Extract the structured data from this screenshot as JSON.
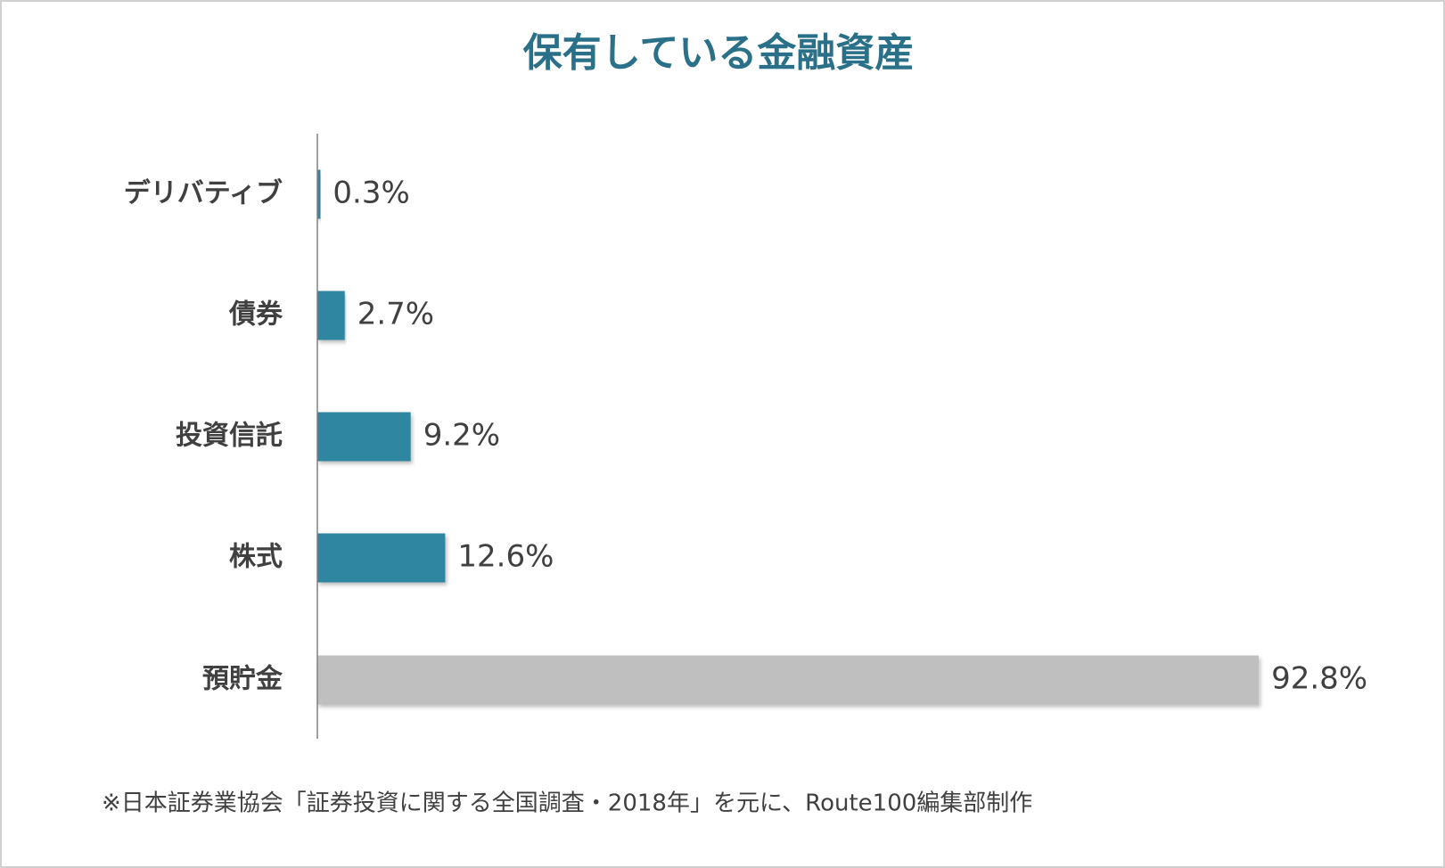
{
  "chart_data": {
    "type": "bar",
    "orientation": "horizontal",
    "title": "保有している金融資産",
    "categories": [
      "デリバティブ",
      "債券",
      "投資信託",
      "株式",
      "預貯金"
    ],
    "values": [
      0.3,
      2.7,
      9.2,
      12.6,
      92.8
    ],
    "value_labels": [
      "0.3%",
      "2.7%",
      "9.2%",
      "12.6%",
      "92.8%"
    ],
    "colors": [
      "#2e86a0",
      "#2e86a0",
      "#2e86a0",
      "#2e86a0",
      "#bfbfbf"
    ],
    "xlim": [
      0,
      100
    ],
    "source": "※日本証券業協会「証券投資に関する全国調査・2018年」を元に、Route100編集部制作"
  }
}
